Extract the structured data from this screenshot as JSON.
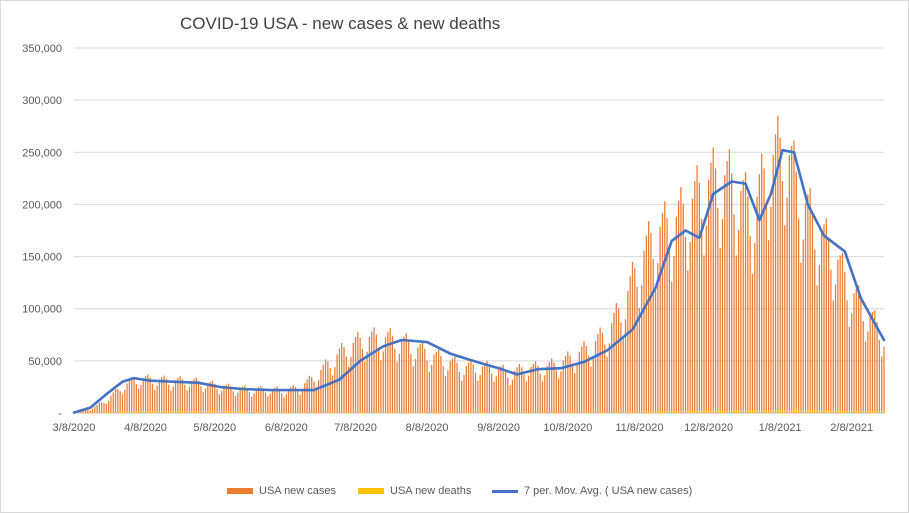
{
  "chart_data": {
    "type": "bar",
    "title": "COVID-19 USA - new cases & new deaths",
    "xlabel": "",
    "ylabel": "",
    "ylim": [
      0,
      350000
    ],
    "y_ticks": [
      "-",
      "50,000",
      "100,000",
      "150,000",
      "200,000",
      "250,000",
      "300,000",
      "350,000"
    ],
    "x_tick_labels": [
      "3/8/2020",
      "4/8/2020",
      "5/8/2020",
      "6/8/2020",
      "7/8/2020",
      "8/8/2020",
      "9/8/2020",
      "10/8/2020",
      "11/8/2020",
      "12/8/2020",
      "1/8/2021",
      "2/8/2021"
    ],
    "x_range": [
      "2020-03-08",
      "2021-02-22"
    ],
    "grid": "horizontal",
    "legend_position": "bottom",
    "series": [
      {
        "name": "USA new cases",
        "kind": "bar",
        "color": "#ED7D31",
        "date_resolution": "weekly average of daily values",
        "dates": [
          "2020-03-08",
          "2020-03-15",
          "2020-03-22",
          "2020-03-29",
          "2020-04-05",
          "2020-04-12",
          "2020-04-19",
          "2020-04-26",
          "2020-05-03",
          "2020-05-10",
          "2020-05-17",
          "2020-05-24",
          "2020-05-31",
          "2020-06-07",
          "2020-06-14",
          "2020-06-21",
          "2020-06-28",
          "2020-07-05",
          "2020-07-12",
          "2020-07-19",
          "2020-07-26",
          "2020-08-02",
          "2020-08-09",
          "2020-08-16",
          "2020-08-23",
          "2020-08-30",
          "2020-09-06",
          "2020-09-13",
          "2020-09-20",
          "2020-09-27",
          "2020-10-04",
          "2020-10-11",
          "2020-10-18",
          "2020-10-25",
          "2020-11-01",
          "2020-11-08",
          "2020-11-15",
          "2020-11-22",
          "2020-11-29",
          "2020-12-06",
          "2020-12-13",
          "2020-12-20",
          "2020-12-27",
          "2021-01-03",
          "2021-01-10",
          "2021-01-17",
          "2021-01-24",
          "2021-01-31",
          "2021-02-07",
          "2021-02-14",
          "2021-02-21"
        ],
        "values": [
          800,
          3500,
          12000,
          25000,
          32000,
          31000,
          30000,
          30000,
          28000,
          25000,
          23000,
          22000,
          22000,
          21000,
          24000,
          35000,
          50000,
          62000,
          69000,
          70000,
          68000,
          62000,
          55000,
          49000,
          43000,
          43000,
          42000,
          37000,
          42000,
          42000,
          46000,
          53000,
          62000,
          75000,
          100000,
          140000,
          168000,
          175000,
          190000,
          210000,
          220000,
          210000,
          185000,
          230000,
          250000,
          200000,
          170000,
          150000,
          115000,
          95000,
          75000
        ]
      },
      {
        "name": "USA new deaths",
        "kind": "bar",
        "color": "#FFC000",
        "date_resolution": "weekly average of daily values",
        "dates": [
          "2020-03-08",
          "2020-04-05",
          "2020-05-03",
          "2020-06-07",
          "2020-07-05",
          "2020-08-02",
          "2020-09-06",
          "2020-10-04",
          "2020-11-01",
          "2020-12-06",
          "2021-01-03",
          "2021-01-10",
          "2021-02-07",
          "2021-02-21"
        ],
        "values": [
          20,
          1800,
          1800,
          800,
          700,
          1000,
          800,
          700,
          1000,
          2400,
          2700,
          3200,
          2300,
          1800
        ]
      },
      {
        "name": "7 per. Mov. Avg. ( USA new cases)",
        "kind": "line",
        "color": "#4472C4",
        "dates": [
          "2020-03-08",
          "2020-03-15",
          "2020-03-22",
          "2020-03-29",
          "2020-04-03",
          "2020-04-10",
          "2020-04-20",
          "2020-05-01",
          "2020-05-10",
          "2020-05-20",
          "2020-06-01",
          "2020-06-10",
          "2020-06-20",
          "2020-07-01",
          "2020-07-10",
          "2020-07-20",
          "2020-07-28",
          "2020-08-08",
          "2020-08-18",
          "2020-08-28",
          "2020-09-08",
          "2020-09-16",
          "2020-09-25",
          "2020-10-05",
          "2020-10-15",
          "2020-10-25",
          "2020-11-05",
          "2020-11-15",
          "2020-11-22",
          "2020-11-28",
          "2020-12-04",
          "2020-12-10",
          "2020-12-18",
          "2020-12-24",
          "2020-12-30",
          "2021-01-04",
          "2021-01-09",
          "2021-01-14",
          "2021-01-20",
          "2021-01-27",
          "2021-02-05",
          "2021-02-12",
          "2021-02-22"
        ],
        "values": [
          500,
          5000,
          18000,
          30000,
          33500,
          31000,
          30000,
          29000,
          25000,
          23000,
          22000,
          22000,
          22000,
          32000,
          50000,
          64000,
          70000,
          68000,
          57000,
          50000,
          43000,
          37000,
          42000,
          43000,
          49000,
          60000,
          80000,
          120000,
          165000,
          175000,
          168000,
          210000,
          222000,
          220000,
          185000,
          210000,
          252000,
          250000,
          200000,
          170000,
          155000,
          110000,
          70000
        ]
      }
    ]
  }
}
